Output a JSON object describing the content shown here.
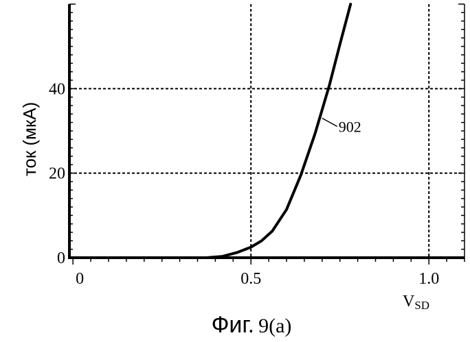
{
  "chart_data": {
    "type": "line",
    "title": "",
    "xlabel": "V",
    "xlabel_subscript": "SD",
    "ylabel": "ток (мкА)",
    "xlim": [
      -0.01,
      1.1
    ],
    "ylim": [
      0,
      60
    ],
    "x_ticks": [
      {
        "value": 0,
        "label": "0"
      },
      {
        "value": 0.5,
        "label": "0.5"
      },
      {
        "value": 1.0,
        "label": "1.0"
      }
    ],
    "y_ticks": [
      {
        "value": 0,
        "label": "0"
      },
      {
        "value": 20,
        "label": "20"
      },
      {
        "value": 40,
        "label": "40"
      }
    ],
    "grid": true,
    "series": [
      {
        "name": "",
        "x": [
          0.375,
          0.42,
          0.46,
          0.5,
          0.53,
          0.56,
          0.6,
          0.64,
          0.68,
          0.72,
          0.75,
          0.78
        ],
        "y": [
          0,
          0.3,
          1.2,
          2.5,
          4.0,
          6.3,
          11.4,
          19.5,
          29.3,
          40.7,
          50.5,
          60
        ]
      }
    ],
    "annotations": [
      {
        "text": "902",
        "x": 0.7,
        "y": 33
      }
    ]
  },
  "caption": {
    "word": "Фиг.",
    "number": "9(a)"
  },
  "colors": {
    "line": "#000000",
    "grid": "#000000",
    "background": "#ffffff"
  }
}
